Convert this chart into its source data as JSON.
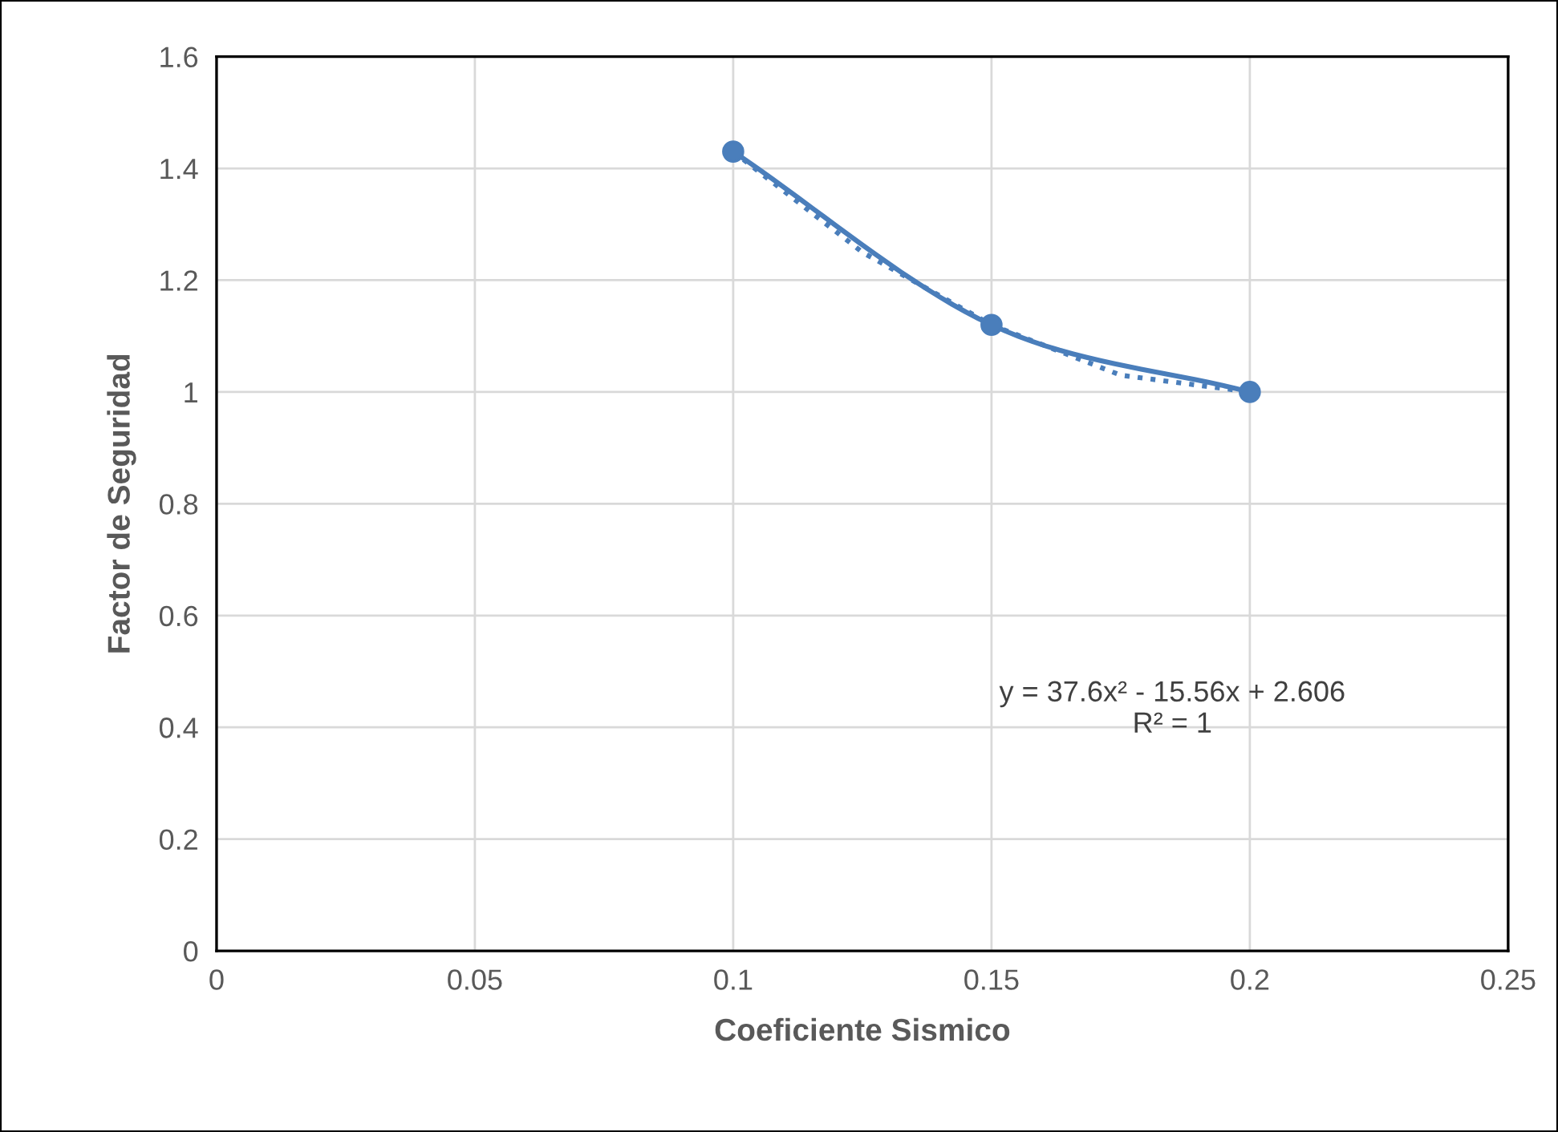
{
  "chart_data": {
    "type": "scatter",
    "xlabel": "Coeficiente Sismico",
    "ylabel": "Factor de Seguridad",
    "xlim": [
      0,
      0.25
    ],
    "xticks": [
      0,
      0.05,
      0.1,
      0.15,
      0.2,
      0.25
    ],
    "ylim": [
      0,
      1.6
    ],
    "yticks": [
      0,
      0.2,
      0.4,
      0.6,
      0.8,
      1,
      1.2,
      1.4,
      1.6
    ],
    "grid": true,
    "legend": false,
    "series": [
      {
        "color": "#4a7ebb",
        "x": [
          0.1,
          0.15,
          0.2
        ],
        "values": [
          1.43,
          1.12,
          1.0
        ],
        "marker": "circle",
        "line_style": "solid"
      },
      {
        "type": "line",
        "color": "#4a7ebb",
        "x": [
          0.1,
          0.125,
          0.15,
          0.175,
          0.2
        ],
        "values": [
          1.43,
          1.25,
          1.12,
          1.03,
          1.0
        ],
        "marker": "none",
        "line_style": "dotted"
      }
    ],
    "annotations": [
      "y = 37.6x² - 15.56x + 2.606\nR² = 1"
    ]
  }
}
